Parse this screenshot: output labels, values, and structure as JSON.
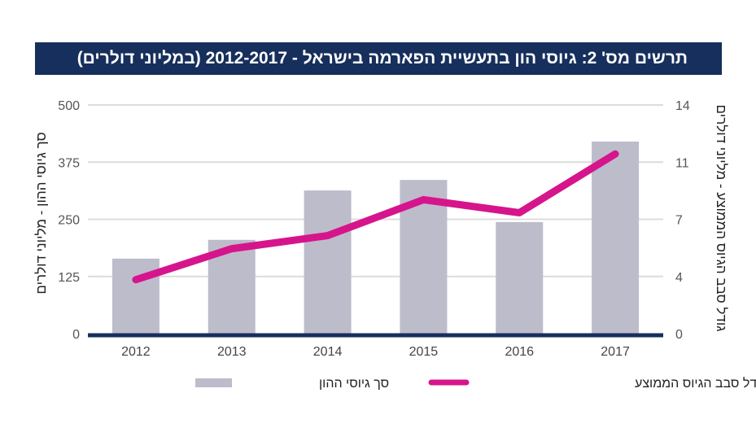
{
  "chart_data": {
    "type": "bar+line",
    "title": "תרשים מס' 2: גיוסי הון בתעשיית הפארמה בישראל - 2012-2017 (במליוני דולרים)",
    "categories": [
      "2012",
      "2013",
      "2014",
      "2015",
      "2016",
      "2017"
    ],
    "series": [
      {
        "name": "סך גיוסי ההון",
        "type": "bar",
        "axis": "left",
        "color": "#bdbccb",
        "values": [
          164,
          205,
          313,
          336,
          244,
          420
        ]
      },
      {
        "name": "גודל סבב הגיוס הממוצע",
        "type": "line",
        "axis": "right",
        "color": "#d6158c",
        "values": [
          3.3,
          5.2,
          6.0,
          8.2,
          7.4,
          11.0
        ]
      }
    ],
    "ylabel_left": "סך גיוסי ההון - מליוני דולרים",
    "ylabel_right": "גודל סבב הגיוס הממוצע - מליוני דולרים",
    "ylim_left": [
      0,
      500
    ],
    "yticks_left": [
      "0",
      "125",
      "250",
      "375",
      "500"
    ],
    "ylim_right": [
      0,
      14
    ],
    "yticks_right": [
      "0",
      "4",
      "7",
      "11",
      "14"
    ],
    "grid": true,
    "legend_placement": "bottom",
    "baseline_color": "#172f5c"
  }
}
